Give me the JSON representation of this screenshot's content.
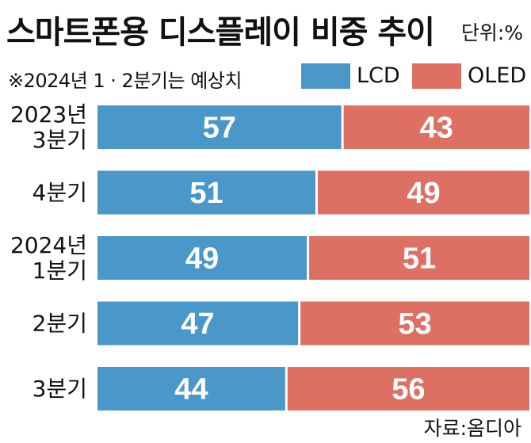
{
  "title": "스마트폰용 디스플레이 비중 추이",
  "unit": "단위:%",
  "note": "※2024년 1 · 2분기는 예상치",
  "source": "자료:옴디아",
  "colors": {
    "lcd": "#4a97c9",
    "oled": "#dd6f63"
  },
  "chart_data": {
    "type": "bar",
    "orientation": "horizontal",
    "stacked": true,
    "title": "스마트폰용 디스플레이 비중 추이",
    "xlabel": "",
    "ylabel": "",
    "xlim": [
      0,
      100
    ],
    "legend_position": "top-right",
    "categories": [
      [
        "2023년",
        "3분기"
      ],
      [
        "4분기"
      ],
      [
        "2024년",
        "1분기"
      ],
      [
        "2분기"
      ],
      [
        "3분기"
      ]
    ],
    "series": [
      {
        "name": "LCD",
        "color": "#4a97c9",
        "values": [
          57,
          51,
          49,
          47,
          44
        ]
      },
      {
        "name": "OLED",
        "color": "#dd6f63",
        "values": [
          43,
          49,
          51,
          53,
          56
        ]
      }
    ]
  }
}
